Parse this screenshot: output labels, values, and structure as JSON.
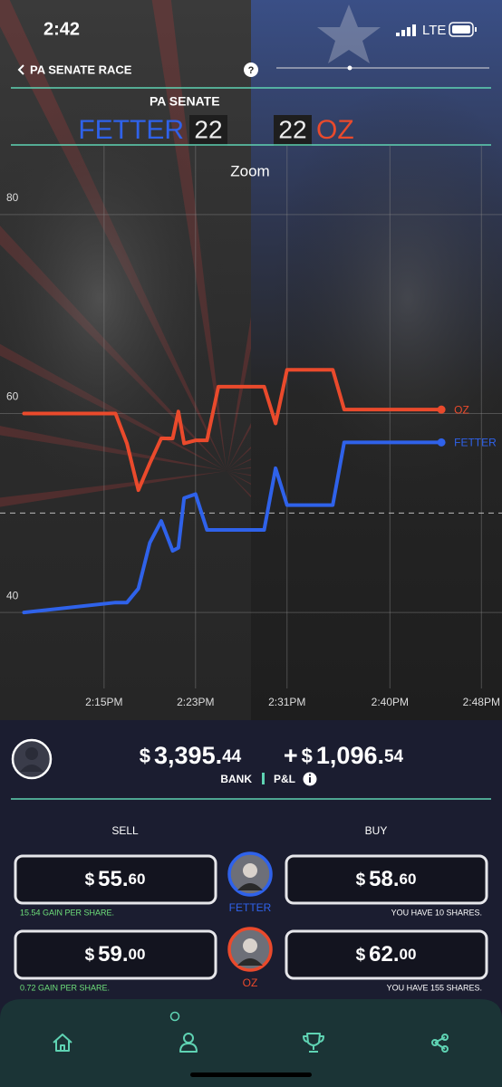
{
  "status_bar": {
    "time": "2:42",
    "network": "LTE"
  },
  "header": {
    "title": "PA SENATE RACE",
    "help": "?"
  },
  "scoreboard": {
    "title": "PA SENATE",
    "left": {
      "name": "FETTER",
      "score": 22
    },
    "right": {
      "name": "OZ",
      "score": 22
    }
  },
  "chart_data": {
    "type": "line",
    "title": "Zoom",
    "x": [
      8,
      16,
      17,
      18,
      19,
      20,
      21,
      21.5,
      22,
      23,
      24,
      25,
      29,
      30,
      31,
      35,
      36,
      44.5
    ],
    "xlim": [
      5.9,
      49.8
    ],
    "xticks": [
      {
        "value": 15,
        "label": "2:15PM"
      },
      {
        "value": 23,
        "label": "2:23PM"
      },
      {
        "value": 31,
        "label": "2:31PM"
      },
      {
        "value": 40,
        "label": "2:40PM"
      },
      {
        "value": 48,
        "label": "2:48PM"
      }
    ],
    "ylim": [
      30,
      87
    ],
    "yticks": [
      40,
      60,
      80
    ],
    "grid": true,
    "reference_line": 50,
    "series": [
      {
        "name": "OZ",
        "color": "#ea4a2c",
        "values": [
          60,
          60,
          57,
          52.3,
          55,
          57.5,
          57.5,
          60.2,
          57,
          57.3,
          57.3,
          62.7,
          62.7,
          59,
          64.4,
          64.4,
          60.4,
          60.4
        ]
      },
      {
        "name": "FETTER",
        "color": "#2f62ea",
        "values": [
          40,
          41,
          41,
          42.4,
          47,
          49.2,
          46.2,
          46.5,
          51.5,
          51.9,
          48.3,
          48.3,
          48.3,
          54.5,
          50.8,
          50.8,
          57.1,
          57.1
        ]
      }
    ]
  },
  "account": {
    "currency": "$",
    "bank": {
      "whole": "3,395.",
      "cents": "44",
      "label": "BANK"
    },
    "pnl": {
      "sign": "+",
      "whole": "1,096.",
      "cents": "54",
      "label": "P&L"
    }
  },
  "trade": {
    "sell_label": "SELL",
    "buy_label": "BUY",
    "rows": [
      {
        "name": "FETTER",
        "sell": {
          "whole": "55.",
          "cents": "60"
        },
        "sell_note": "15.54 GAIN PER SHARE.",
        "buy": {
          "whole": "58.",
          "cents": "60"
        },
        "buy_note": "YOU HAVE 10 SHARES."
      },
      {
        "name": "OZ",
        "sell": {
          "whole": "59.",
          "cents": "00"
        },
        "sell_note": "0.72 GAIN PER SHARE.",
        "buy": {
          "whole": "62.",
          "cents": "00"
        },
        "buy_note": "YOU HAVE 155 SHARES."
      }
    ]
  }
}
